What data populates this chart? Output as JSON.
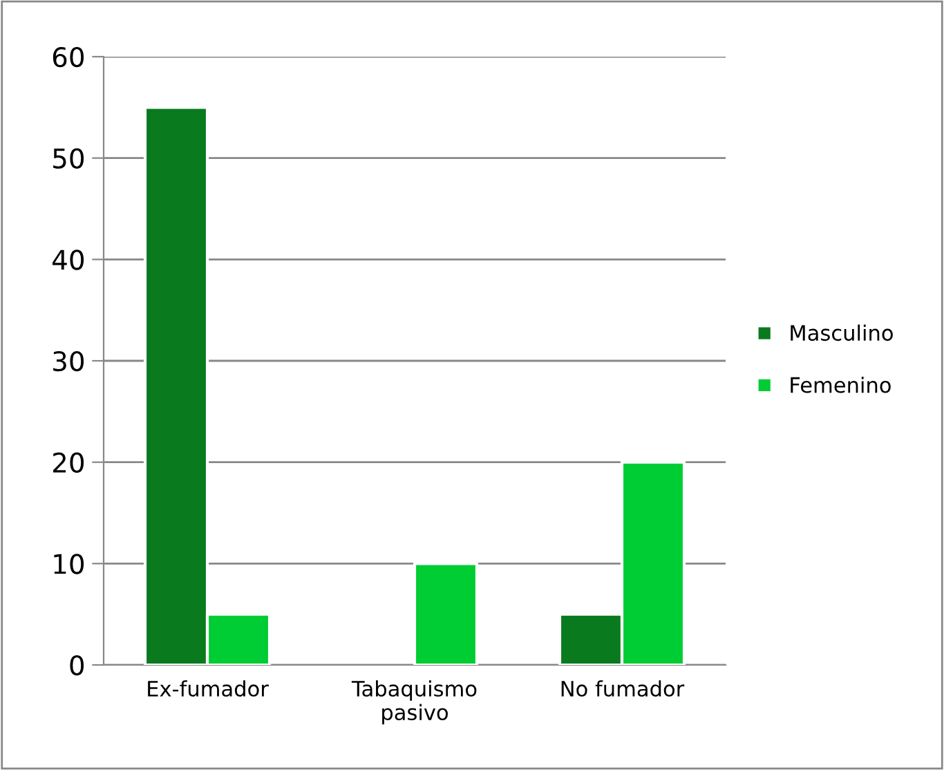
{
  "chart_data": {
    "type": "bar",
    "categories": [
      "Ex-fumador",
      "Tabaquismo pasivo",
      "No fumador"
    ],
    "series": [
      {
        "name": "Masculino",
        "color": "#0a7a1e",
        "values": [
          55,
          null,
          5
        ]
      },
      {
        "name": "Femenino",
        "color": "#00cc33",
        "values": [
          5,
          10,
          20
        ]
      }
    ],
    "ylim": [
      0,
      60
    ],
    "yticks": [
      0,
      10,
      20,
      30,
      40,
      50,
      60
    ],
    "grid": "y",
    "legend": "right"
  }
}
